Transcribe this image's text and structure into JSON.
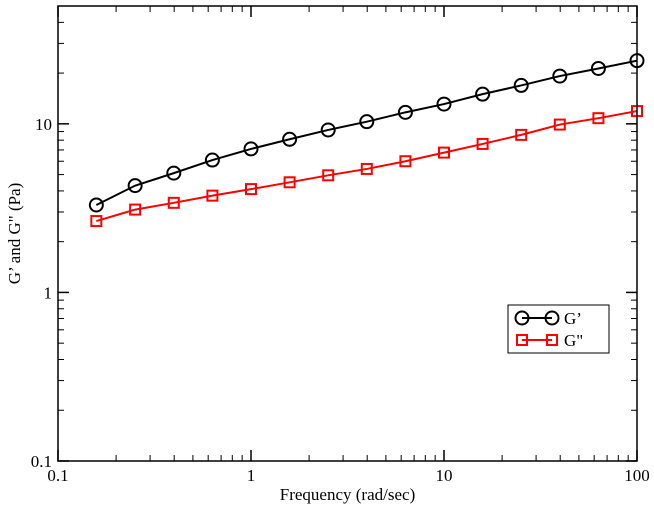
{
  "chart_data": {
    "type": "line",
    "xscale": "log",
    "yscale": "log",
    "xlim": [
      0.1,
      100
    ],
    "ylim": [
      0.1,
      50
    ],
    "xlabel": "Frequency (rad/sec)",
    "ylabel": "G’ and G\" (Pa)",
    "xticks": [
      {
        "value": 0.1,
        "label": "0.1"
      },
      {
        "value": 1,
        "label": "1"
      },
      {
        "value": 10,
        "label": "10"
      },
      {
        "value": 100,
        "label": "100"
      }
    ],
    "yticks": [
      {
        "value": 0.1,
        "label": "0.1"
      },
      {
        "value": 1,
        "label": "1"
      },
      {
        "value": 10,
        "label": "10"
      }
    ],
    "grid": false,
    "legend_position": "lower-right",
    "x": [
      0.158,
      0.251,
      0.398,
      0.631,
      1.0,
      1.585,
      2.512,
      3.981,
      6.31,
      10.0,
      15.85,
      25.12,
      39.81,
      63.1,
      100.0
    ],
    "series": [
      {
        "name": "G’",
        "color": "#000000",
        "marker": "circle",
        "values": [
          3.3,
          4.3,
          5.1,
          6.1,
          7.1,
          8.1,
          9.2,
          10.3,
          11.7,
          13.1,
          15.0,
          16.9,
          19.2,
          21.3,
          23.7
        ]
      },
      {
        "name": "G\"",
        "color": "#ff0000",
        "marker": "square",
        "values": [
          2.65,
          3.1,
          3.4,
          3.75,
          4.1,
          4.5,
          4.95,
          5.4,
          6.0,
          6.75,
          7.6,
          8.6,
          9.9,
          10.8,
          11.9
        ]
      }
    ]
  }
}
